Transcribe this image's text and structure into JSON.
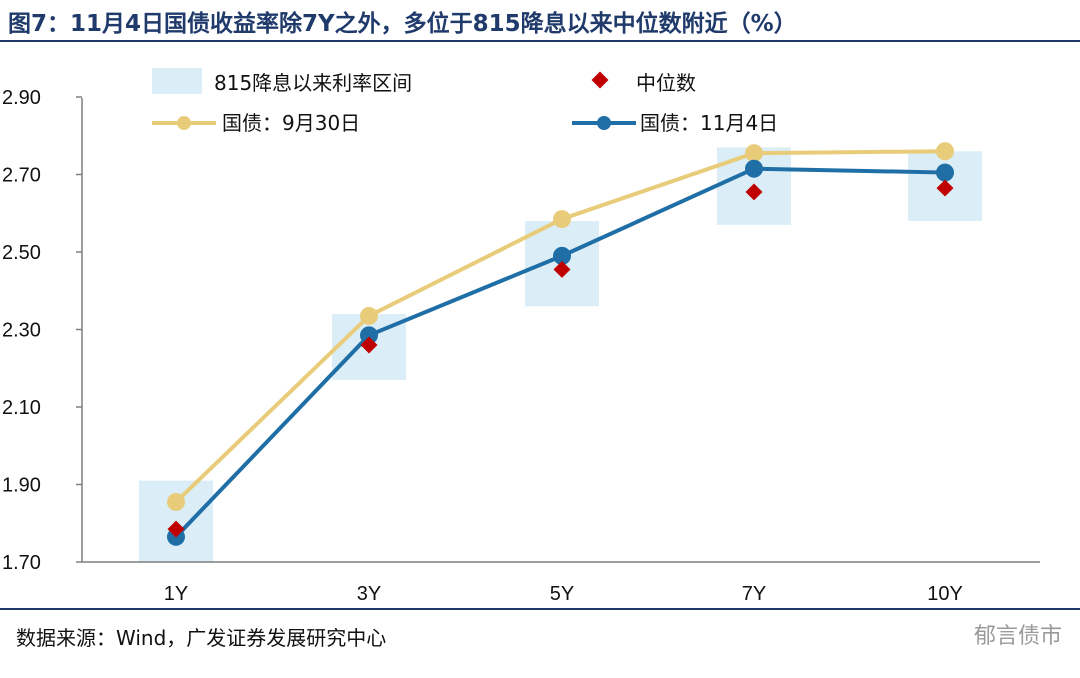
{
  "header": {
    "title": "图7：11月4日国债收益率除7Y之外，多位于815降息以来中位数附近（%）"
  },
  "footer": {
    "source": "数据来源：Wind，广发证券发展研究中心",
    "watermark": "郁言债市"
  },
  "chart_data": {
    "type": "line",
    "categories": [
      "1Y",
      "3Y",
      "5Y",
      "7Y",
      "10Y"
    ],
    "ylim": [
      1.7,
      2.95
    ],
    "yticks": [
      "2.90",
      "2.70",
      "2.50",
      "2.30",
      "2.10",
      "1.90",
      "1.70"
    ],
    "grid": false,
    "legend": {
      "range": "815降息以来利率区间",
      "median": "中位数",
      "sep30": "国债：9月30日",
      "nov4": "国债：11月4日"
    },
    "series": [
      {
        "name": "国债：9月30日",
        "color": "#e8cc7a",
        "values": [
          1.855,
          2.335,
          2.585,
          2.755,
          2.76
        ]
      },
      {
        "name": "国债：11月4日",
        "color": "#1f6fa6",
        "values": [
          1.765,
          2.285,
          2.49,
          2.715,
          2.705
        ]
      }
    ],
    "median": {
      "name": "中位数",
      "color": "#c00000",
      "values": [
        1.785,
        2.26,
        2.455,
        2.655,
        2.665
      ]
    },
    "range": {
      "name": "815降息以来利率区间",
      "color": "#dbeef7",
      "low": [
        1.7,
        2.17,
        2.36,
        2.57,
        2.58
      ],
      "high": [
        1.91,
        2.34,
        2.58,
        2.77,
        2.76
      ]
    }
  }
}
